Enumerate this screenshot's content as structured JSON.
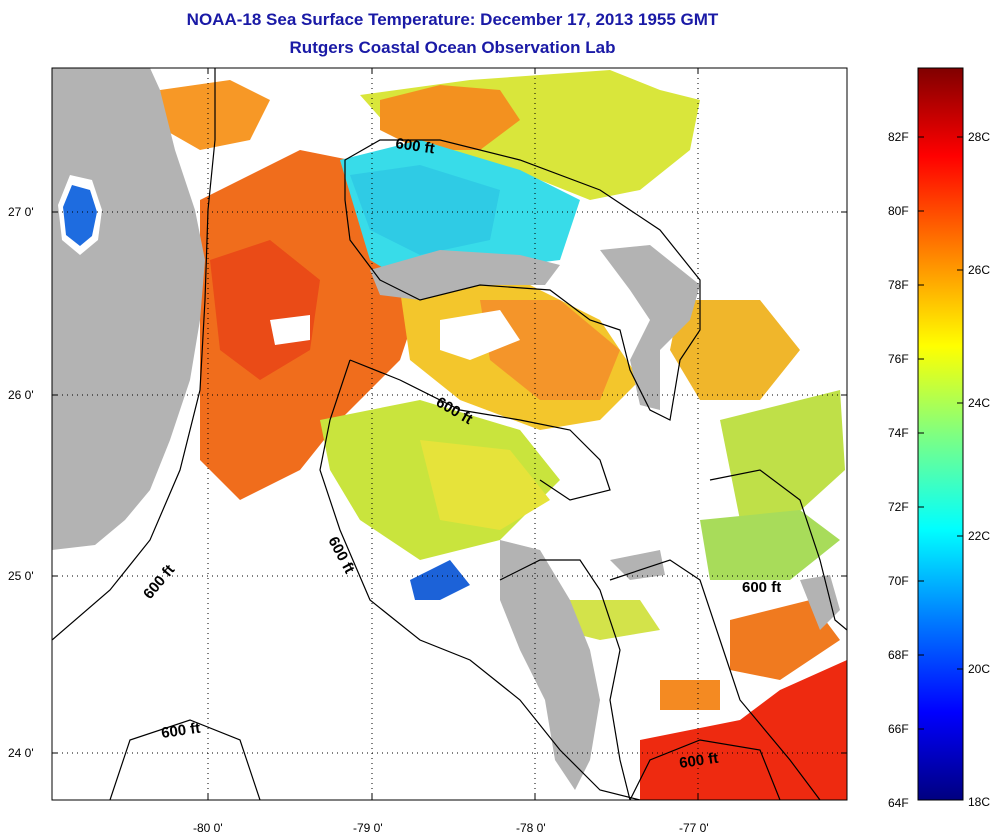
{
  "title": {
    "line1": "NOAA-18 Sea Surface Temperature:  December 17, 2013 1955 GMT",
    "line2": "Rutgers Coastal Ocean Observation Lab"
  },
  "axes": {
    "x_ticks": [
      "-80 0'",
      "-79 0'",
      "-78 0'",
      "-77 0'"
    ],
    "y_ticks": [
      "27 0'",
      "26 0'",
      "25 0'",
      "24 0'"
    ]
  },
  "contours": {
    "label": "600 ft"
  },
  "colorbar": {
    "fahrenheit_labels": [
      "82F",
      "80F",
      "78F",
      "76F",
      "74F",
      "72F",
      "70F",
      "68F",
      "66F",
      "64F"
    ],
    "celsius_labels": [
      "28C",
      "26C",
      "24C",
      "22C",
      "20C",
      "18C"
    ],
    "colors": [
      "#000080",
      "#0000ff",
      "#0080ff",
      "#00ffff",
      "#80ff80",
      "#ffff00",
      "#ff8000",
      "#ff0000",
      "#800000"
    ]
  },
  "colors": {
    "land": "#b3b3b3",
    "title": "#1a1aa6",
    "warm": "#f97a1e",
    "cool": "#33ddee",
    "mid": "#e6ec3a"
  }
}
